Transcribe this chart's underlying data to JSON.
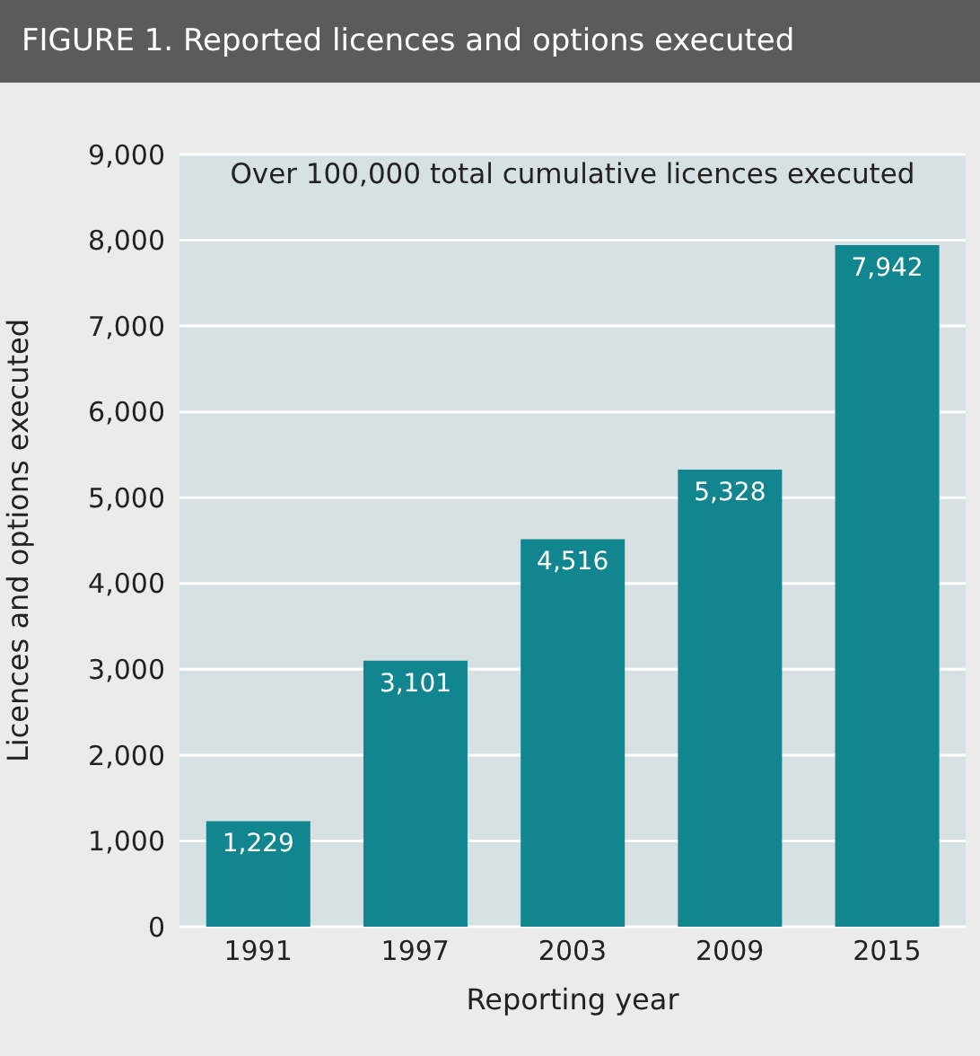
{
  "chart_data": {
    "type": "bar",
    "title": "FIGURE 1. Reported licences and options executed",
    "xlabel": "Reporting year",
    "ylabel": "Licences and options executed",
    "annotations": [
      "Over 100,000 total cumulative licences executed"
    ],
    "categories": [
      "1991",
      "1997",
      "2003",
      "2009",
      "2015"
    ],
    "values": [
      1229,
      3101,
      4516,
      5328,
      7942
    ],
    "color": "#11868f",
    "value_labels": [
      "1,229",
      "3,101",
      "4,516",
      "5,328",
      "7,942"
    ],
    "ylim": [
      0,
      9000
    ],
    "yticks": [
      0,
      {
        "value": 1000,
        "label": "1,000"
      },
      {
        "value": 2000,
        "label": "2,000"
      },
      {
        "value": 3000,
        "label": "3,000"
      },
      {
        "value": 4000,
        "label": "4,000"
      },
      {
        "value": 5000,
        "label": "5,000"
      },
      {
        "value": 6000,
        "label": "6,000"
      },
      {
        "value": 7000,
        "label": "7,000"
      },
      {
        "value": 8000,
        "label": "8,000"
      },
      {
        "value": 9000,
        "label": "9,000"
      }
    ],
    "grid": "y"
  }
}
